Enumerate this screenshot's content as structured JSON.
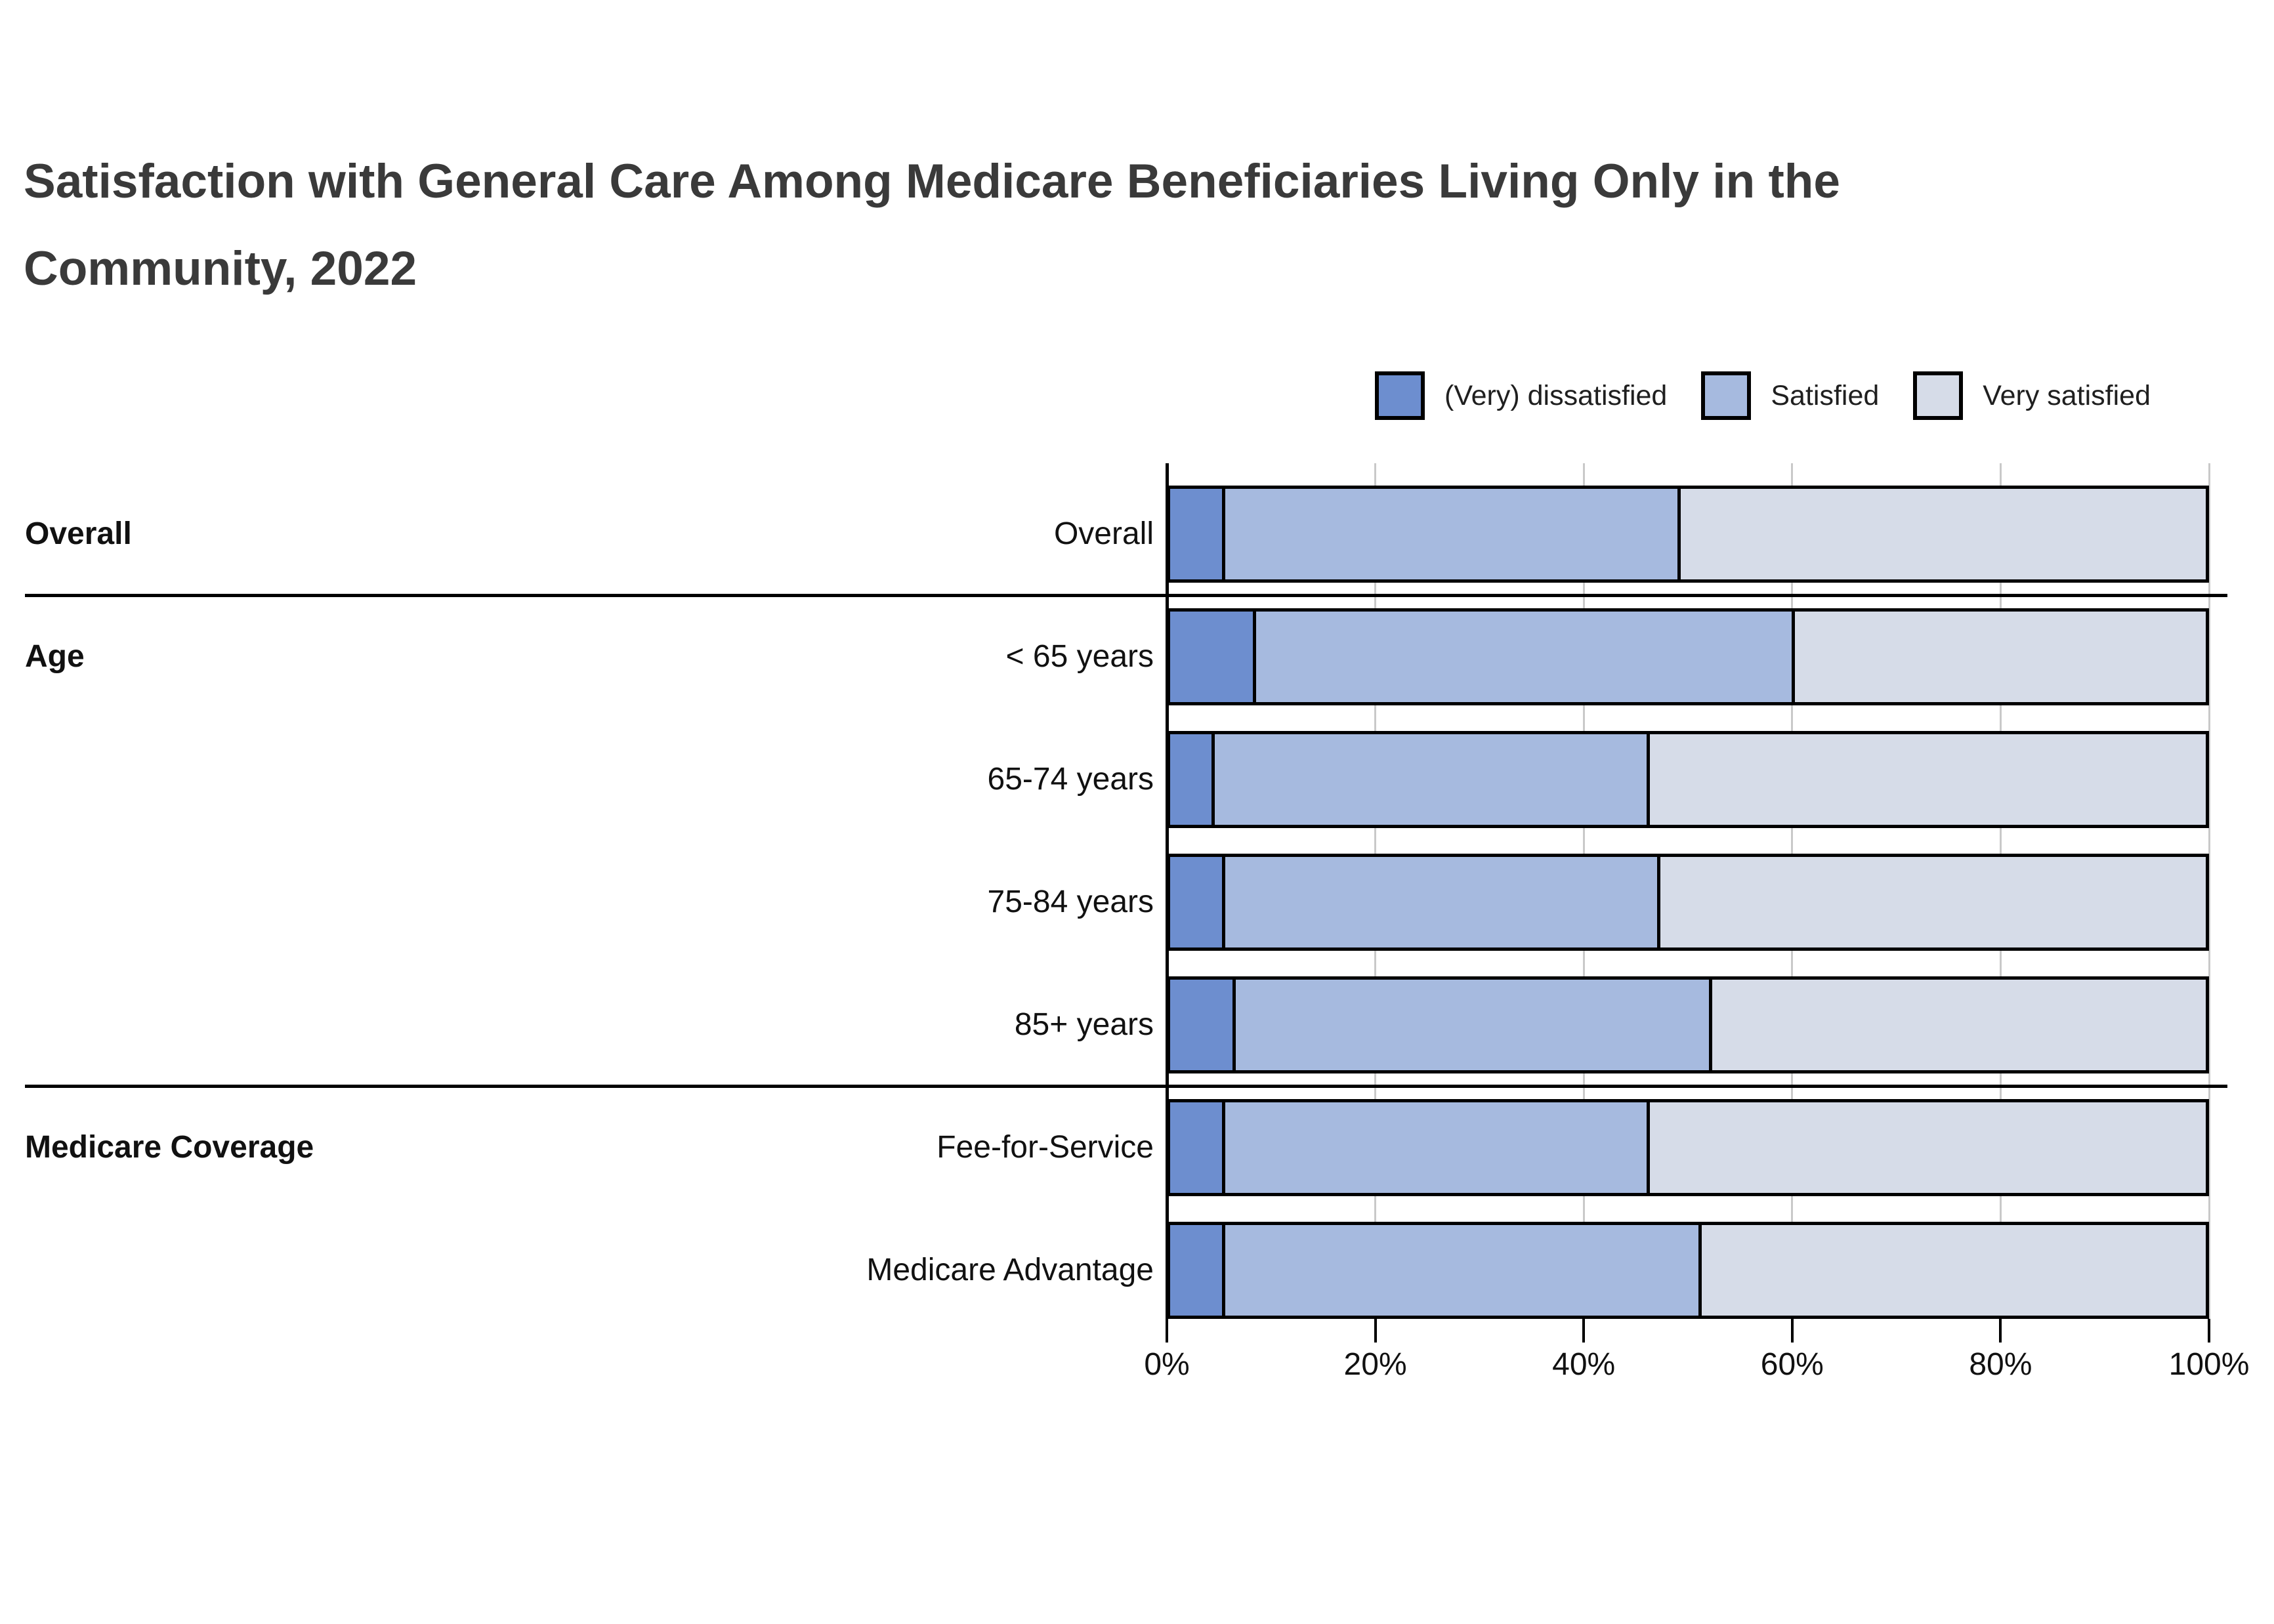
{
  "title": {
    "line1": "Satisfaction with General Care Among Medicare Beneficiaries Living Only in the",
    "line2": "Community, 2022"
  },
  "legend": {
    "items": [
      {
        "label": "(Very) dissatisfied",
        "color": "#6d8ecf"
      },
      {
        "label": "Satisfied",
        "color": "#a6badf"
      },
      {
        "label": "Very satisfied",
        "color": "#d6dce8"
      }
    ]
  },
  "chart_data": {
    "type": "bar",
    "subtype": "horizontal_stacked_100_percent",
    "title": "Satisfaction with General Care Among Medicare Beneficiaries Living Only in the Community, 2022",
    "series": [
      "(Very) dissatisfied",
      "Satisfied",
      "Very satisfied"
    ],
    "colors": [
      "#6d8ecf",
      "#a6badf",
      "#d6dce8"
    ],
    "grid": true,
    "legend_position": "top-right",
    "xlim": [
      0,
      100
    ],
    "xticks": [
      "0%",
      "20%",
      "40%",
      "60%",
      "80%",
      "100%"
    ],
    "groups": [
      {
        "label": "Overall",
        "rows": [
          {
            "label": "Overall",
            "values": [
              5,
              44,
              51
            ]
          }
        ]
      },
      {
        "label": "Age",
        "rows": [
          {
            "label": "< 65 years",
            "values": [
              8,
              52,
              40
            ]
          },
          {
            "label": "65-74 years",
            "values": [
              4,
              42,
              54
            ]
          },
          {
            "label": "75-84 years",
            "values": [
              5,
              42,
              53
            ]
          },
          {
            "label": "85+ years",
            "values": [
              6,
              46,
              48
            ]
          }
        ]
      },
      {
        "label": "Medicare Coverage",
        "rows": [
          {
            "label": "Fee-for-Service",
            "values": [
              5,
              41,
              54
            ]
          },
          {
            "label": "Medicare Advantage",
            "values": [
              5,
              46,
              49
            ]
          }
        ]
      }
    ]
  }
}
